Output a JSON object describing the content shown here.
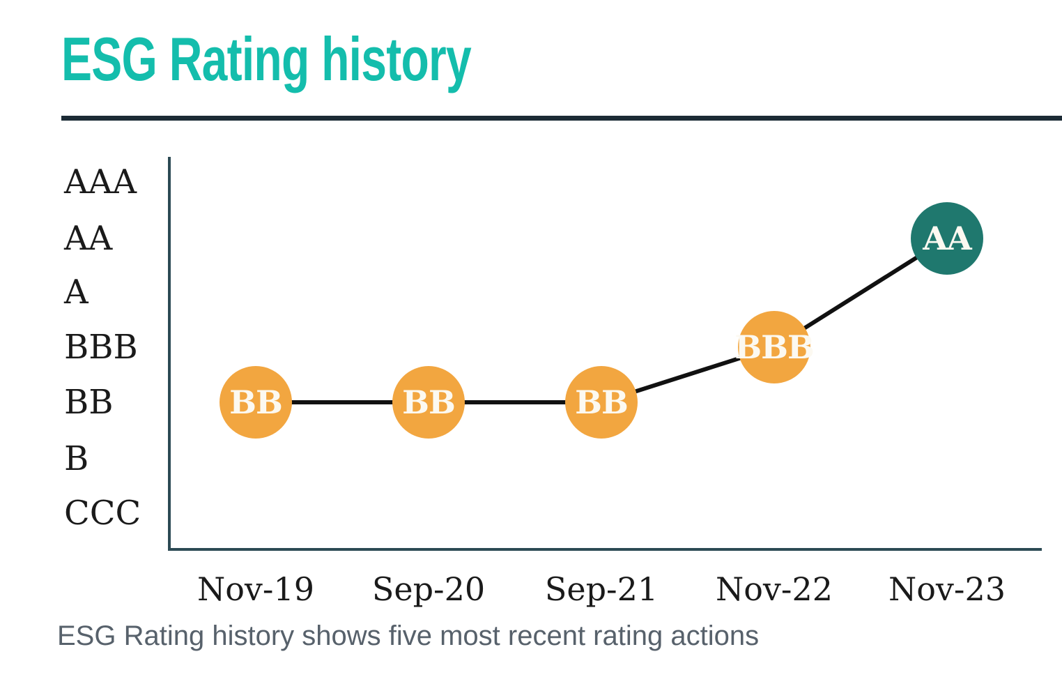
{
  "page": {
    "title": "ESG Rating history",
    "caption": "ESG Rating history shows five most recent rating actions"
  },
  "colors": {
    "title": "#14BDAC",
    "rule": "#1C2B35",
    "axis": "#2C4A54",
    "label": "#1A1A1A",
    "caption": "#57616B",
    "series_line": "#111111",
    "marker_text": "#FCF9F1"
  },
  "chart_data": {
    "type": "line",
    "title": "ESG Rating history",
    "x": [
      "Nov-19",
      "Sep-20",
      "Sep-21",
      "Nov-22",
      "Nov-23"
    ],
    "y_scale": [
      "AAA",
      "AA",
      "A",
      "BBB",
      "BB",
      "B",
      "CCC"
    ],
    "series": [
      {
        "name": "ESG Rating",
        "values": [
          "BB",
          "BB",
          "BB",
          "BBB",
          "AA"
        ]
      }
    ],
    "marker_colors": {
      "BB": "#F2A640",
      "BBB": "#F2A640",
      "AA": "#1F786E"
    },
    "legend": "none",
    "grid": false,
    "annotation": "ESG Rating history shows five most recent rating actions"
  }
}
